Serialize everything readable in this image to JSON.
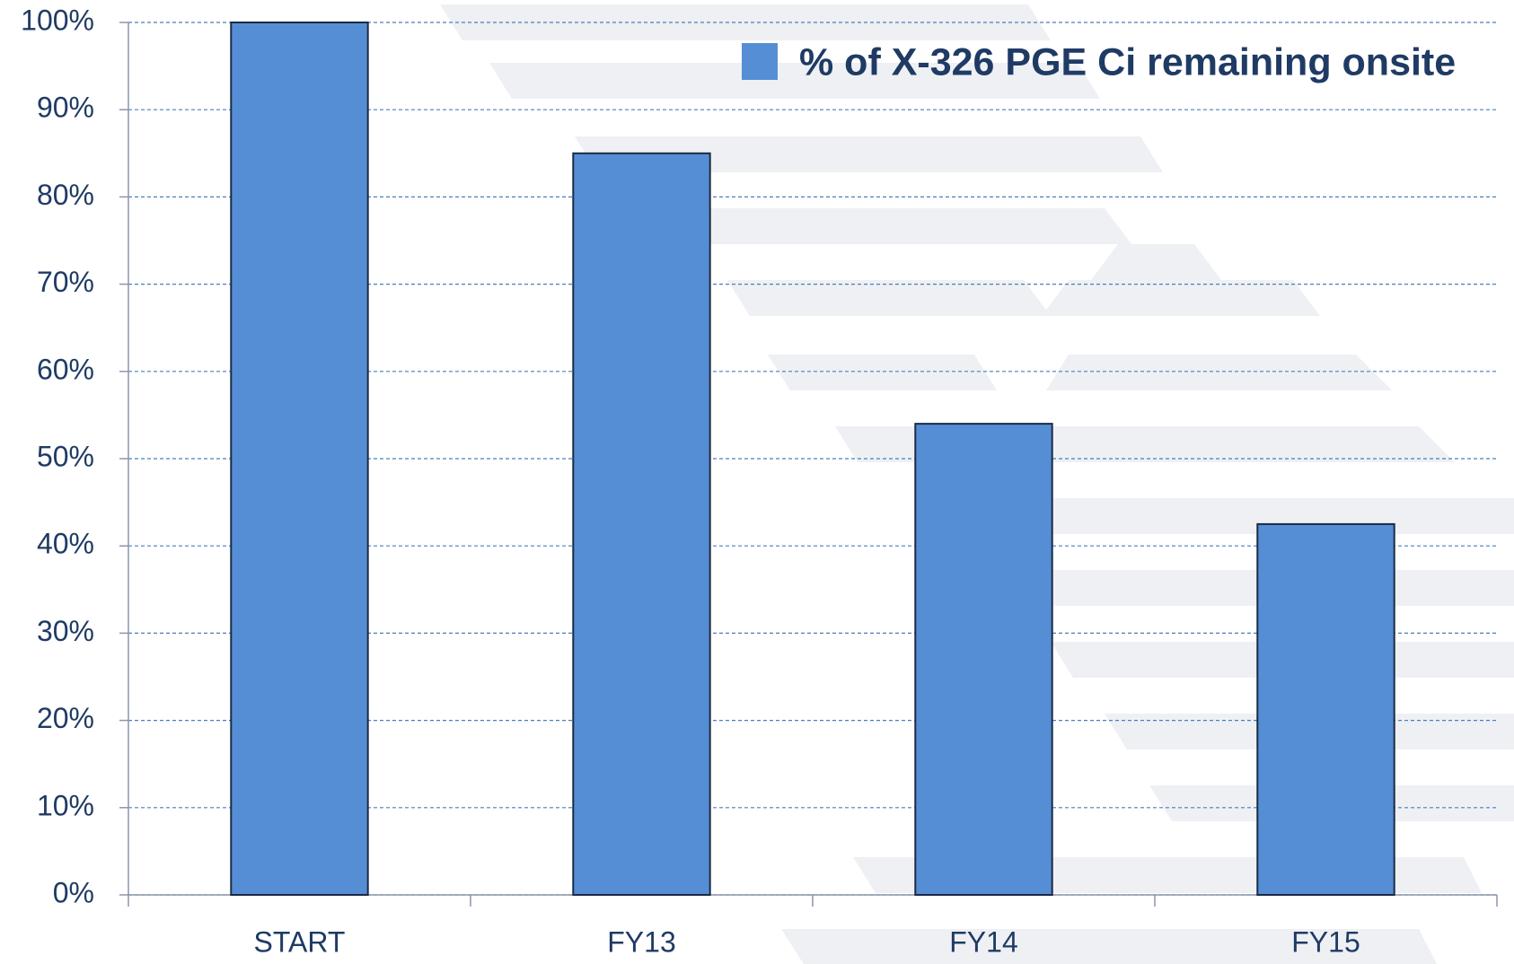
{
  "chart_data": {
    "type": "bar",
    "categories": [
      "START",
      "FY13",
      "FY14",
      "FY15"
    ],
    "series": [
      {
        "name": "% of X-326 PGE Ci remaining onsite",
        "color": "#558ed5",
        "values": [
          100,
          85,
          54,
          42.5
        ]
      }
    ],
    "ylim": [
      0,
      100
    ],
    "yticks": [
      {
        "value": 0,
        "label": "0%"
      },
      {
        "value": 10,
        "label": "10%"
      },
      {
        "value": 20,
        "label": "20%"
      },
      {
        "value": 30,
        "label": "30%"
      },
      {
        "value": 40,
        "label": "40%"
      },
      {
        "value": 50,
        "label": "50%"
      },
      {
        "value": 60,
        "label": "60%"
      },
      {
        "value": 70,
        "label": "70%"
      },
      {
        "value": 80,
        "label": "80%"
      },
      {
        "value": 90,
        "label": "90%"
      },
      {
        "value": 100,
        "label": "100%"
      }
    ],
    "grid": true,
    "legend": "top-right"
  }
}
